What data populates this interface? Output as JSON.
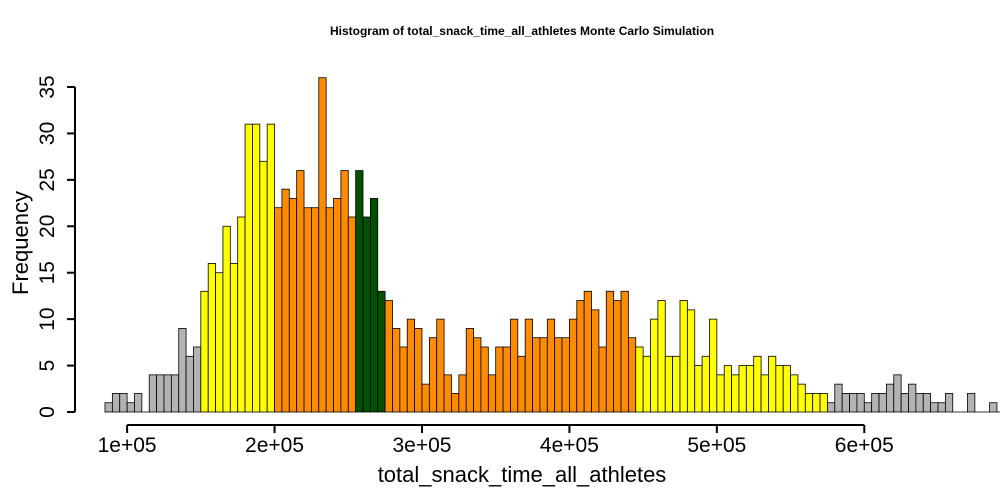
{
  "chart_data": {
    "type": "bar",
    "title": "Histogram of  total_snack_time_all_athletes  Monte Carlo Simulation",
    "xlabel": "total_snack_time_all_athletes",
    "ylabel": "Frequency",
    "xlim": [
      85000,
      650000
    ],
    "ylim": [
      0,
      36
    ],
    "bin_width": 5000,
    "x_start": 85000,
    "x_ticks": [
      100000,
      200000,
      300000,
      400000,
      500000,
      600000
    ],
    "x_tick_labels": [
      "1e+05",
      "2e+05",
      "3e+05",
      "4e+05",
      "5e+05",
      "6e+05"
    ],
    "y_ticks": [
      0,
      5,
      10,
      15,
      20,
      25,
      30,
      35
    ],
    "y_tick_labels": [
      "0",
      "5",
      "10",
      "15",
      "20",
      "25",
      "30",
      "35"
    ],
    "grid": false,
    "colors": {
      "gray": "#b3b3b3",
      "yellow": "#ffff00",
      "orange": "#ff8c00",
      "green": "#005000"
    },
    "values": [
      1,
      2,
      2,
      1,
      2,
      0,
      4,
      4,
      4,
      4,
      9,
      6,
      7,
      13,
      16,
      15,
      20,
      16,
      21,
      31,
      31,
      27,
      31,
      22,
      24,
      23,
      26,
      22,
      22,
      36,
      22,
      23,
      26,
      21,
      26,
      21,
      23,
      13,
      12,
      9,
      7,
      10,
      9,
      3,
      8,
      10,
      4,
      2,
      4,
      9,
      8,
      7,
      4,
      7,
      7,
      10,
      6,
      10,
      8,
      8,
      10,
      8,
      8,
      10,
      12,
      13,
      11,
      7,
      13,
      12,
      13,
      8,
      7,
      6,
      10,
      12,
      6,
      6,
      12,
      11,
      5,
      6,
      10,
      4,
      5,
      4,
      5,
      5,
      6,
      4,
      6,
      5,
      5,
      4,
      3,
      2,
      2,
      2,
      1,
      3,
      2,
      2,
      2,
      1,
      2,
      2,
      3,
      4,
      2,
      3,
      2,
      2,
      1,
      1,
      2,
      0,
      0,
      2,
      0,
      0,
      1,
      0,
      0,
      1,
      2,
      0,
      0,
      2
    ],
    "bar_colors": [
      "gray",
      "gray",
      "gray",
      "gray",
      "gray",
      "gray",
      "gray",
      "gray",
      "gray",
      "gray",
      "gray",
      "gray",
      "gray",
      "yellow",
      "yellow",
      "yellow",
      "yellow",
      "yellow",
      "yellow",
      "yellow",
      "yellow",
      "yellow",
      "yellow",
      "orange",
      "orange",
      "orange",
      "orange",
      "orange",
      "orange",
      "orange",
      "orange",
      "orange",
      "orange",
      "orange",
      "green",
      "green",
      "green",
      "green",
      "orange",
      "orange",
      "orange",
      "orange",
      "orange",
      "orange",
      "orange",
      "orange",
      "orange",
      "orange",
      "orange",
      "orange",
      "orange",
      "orange",
      "orange",
      "orange",
      "orange",
      "orange",
      "orange",
      "orange",
      "orange",
      "orange",
      "orange",
      "orange",
      "orange",
      "orange",
      "orange",
      "orange",
      "orange",
      "orange",
      "orange",
      "orange",
      "orange",
      "orange",
      "yellow",
      "yellow",
      "yellow",
      "yellow",
      "yellow",
      "yellow",
      "yellow",
      "yellow",
      "yellow",
      "yellow",
      "yellow",
      "yellow",
      "yellow",
      "yellow",
      "yellow",
      "yellow",
      "yellow",
      "yellow",
      "yellow",
      "yellow",
      "yellow",
      "yellow",
      "yellow",
      "yellow",
      "yellow",
      "yellow",
      "gray",
      "gray",
      "gray",
      "gray",
      "gray",
      "gray",
      "gray",
      "gray",
      "gray",
      "gray",
      "gray",
      "gray",
      "gray",
      "gray",
      "gray",
      "gray",
      "gray",
      "gray",
      "gray",
      "gray",
      "gray",
      "gray",
      "gray",
      "gray",
      "gray",
      "gray",
      "gray",
      "gray",
      "gray"
    ]
  }
}
